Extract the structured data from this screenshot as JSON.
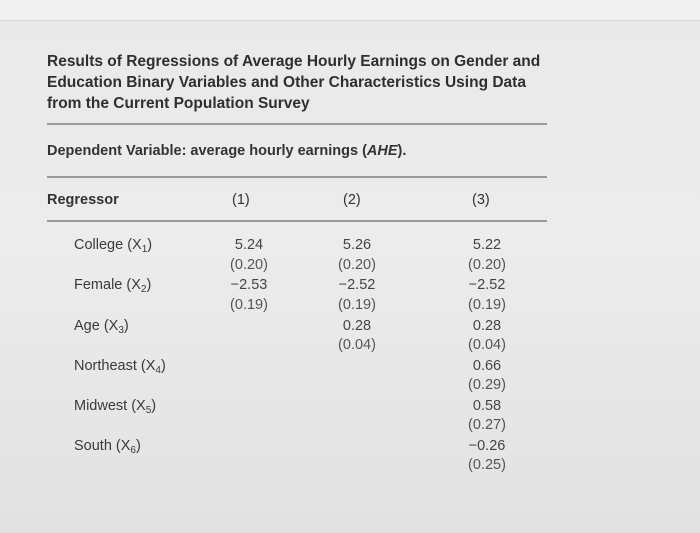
{
  "table": {
    "title": "Results of Regressions of Average Hourly Earnings on Gender and Education Binary Variables and Other Characteristics Using Data from the Current Population Survey",
    "dependent_prefix": "Dependent Variable: average hourly earnings (",
    "dependent_abbrev": "AHE",
    "dependent_suffix": ").",
    "header": {
      "regressor": "Regressor",
      "col1": "(1)",
      "col2": "(2)",
      "col3": "(3)"
    },
    "rows": [
      {
        "name": "College (X",
        "sub": "1",
        "close": ")",
        "c1": "5.24",
        "s1": "(0.20)",
        "c2": "5.26",
        "s2": "(0.20)",
        "c3": "5.22",
        "s3": "(0.20)"
      },
      {
        "name": "Female (X",
        "sub": "2",
        "close": ")",
        "c1": "−2.53",
        "s1": "(0.19)",
        "c2": "−2.52",
        "s2": "(0.19)",
        "c3": "−2.52",
        "s3": "(0.19)"
      },
      {
        "name": "Age (X",
        "sub": "3",
        "close": ")",
        "c2": "0.28",
        "s2": "(0.04)",
        "c3": "0.28",
        "s3": "(0.04)"
      },
      {
        "name": "Northeast (X",
        "sub": "4",
        "close": ")",
        "c3": "0.66",
        "s3": "(0.29)"
      },
      {
        "name": "Midwest (X",
        "sub": "5",
        "close": ")",
        "c3": "0.58",
        "s3": "(0.27)"
      },
      {
        "name": "South (X",
        "sub": "6",
        "close": ")",
        "c3": "−0.26",
        "s3": "(0.25)"
      }
    ]
  }
}
